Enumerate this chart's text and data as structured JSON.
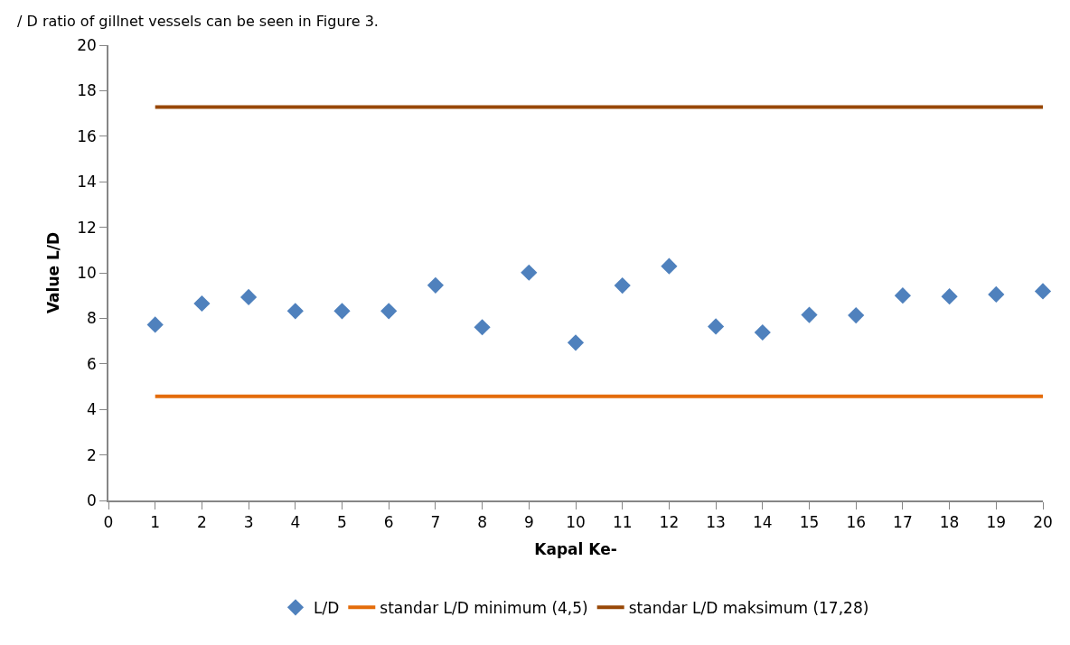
{
  "chart_data": {
    "type": "scatter",
    "xlabel": "Kapal Ke-",
    "ylabel": "Value L/D",
    "annotations": [
      "/ D ratio of gillnet vessels can be seen in Figure 3."
    ],
    "x": [
      1,
      2,
      3,
      4,
      5,
      6,
      7,
      8,
      9,
      10,
      11,
      12,
      13,
      14,
      15,
      16,
      17,
      18,
      19,
      20
    ],
    "series": [
      {
        "name": "L/D",
        "marker": "diamond",
        "color": "#4f81bd",
        "values": [
          7.72,
          8.65,
          8.93,
          8.32,
          8.32,
          8.32,
          9.45,
          7.61,
          10.01,
          6.93,
          9.44,
          10.29,
          7.64,
          7.38,
          8.15,
          8.13,
          9.0,
          8.96,
          9.05,
          9.19
        ]
      },
      {
        "name": "standar L/D minimum (4,5)",
        "type": "line",
        "marker": "none",
        "color": "#e46c0a",
        "values": [
          4.57,
          4.57,
          4.57,
          4.57,
          4.57,
          4.57,
          4.57,
          4.57,
          4.57,
          4.57,
          4.57,
          4.57,
          4.57,
          4.57,
          4.57,
          4.57,
          4.57,
          4.57,
          4.57,
          4.57
        ]
      },
      {
        "name": "standar L/D maksimum (17,28)",
        "type": "line",
        "marker": "none",
        "color": "#984807",
        "values": [
          17.28,
          17.28,
          17.28,
          17.28,
          17.28,
          17.28,
          17.28,
          17.28,
          17.28,
          17.28,
          17.28,
          17.28,
          17.28,
          17.28,
          17.28,
          17.28,
          17.28,
          17.28,
          17.28,
          17.28
        ]
      }
    ],
    "xlim": [
      0,
      20
    ],
    "xticks": [
      0,
      1,
      2,
      3,
      4,
      5,
      6,
      7,
      8,
      9,
      10,
      11,
      12,
      13,
      14,
      15,
      16,
      17,
      18,
      19,
      20
    ],
    "ylim": [
      0,
      20
    ],
    "yticks": [
      0,
      2,
      4,
      6,
      8,
      10,
      12,
      14,
      16,
      18,
      20
    ],
    "legend": "bottom"
  }
}
